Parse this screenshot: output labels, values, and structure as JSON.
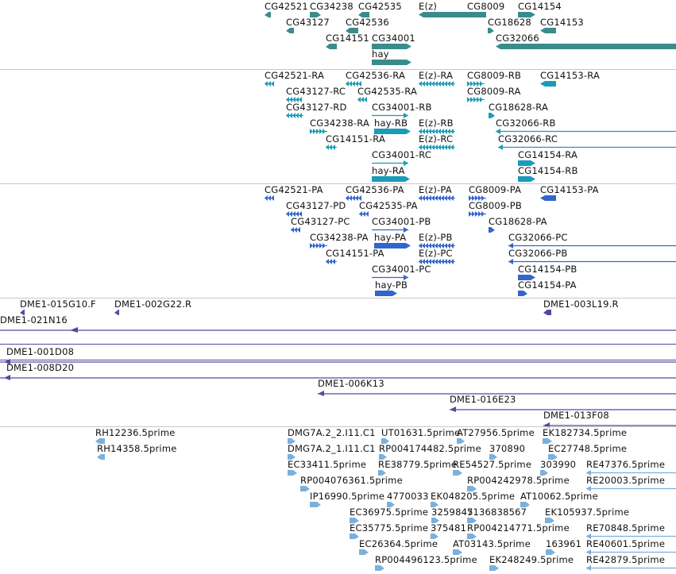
{
  "colors": {
    "gene": "#3a8c8c",
    "transcript": "#1a9cb8",
    "protein": "#3366cc",
    "clone": "#5b45a0",
    "est": "#7ab0dc",
    "separator": "#c8c8c8"
  },
  "tracks": [
    {
      "name": "genes",
      "color": "#3a8c8c",
      "features": [
        {
          "label": "CG42521",
          "strand": "-"
        },
        {
          "label": "CG34238",
          "strand": "+"
        },
        {
          "label": "CG42535",
          "strand": "-"
        },
        {
          "label": "E(z)",
          "strand": "-"
        },
        {
          "label": "CG8009",
          "strand": "+"
        },
        {
          "label": "CG14154",
          "strand": "+"
        },
        {
          "label": "CG43127",
          "strand": "-"
        },
        {
          "label": "CG42536",
          "strand": "-"
        },
        {
          "label": "CG18628",
          "strand": "+"
        },
        {
          "label": "CG14153",
          "strand": "-"
        },
        {
          "label": "CG14151",
          "strand": "-"
        },
        {
          "label": "CG34001",
          "strand": "+"
        },
        {
          "label": "CG32066",
          "strand": "-"
        },
        {
          "label": "hay",
          "strand": "+"
        }
      ]
    },
    {
      "name": "transcripts",
      "color": "#1a9cb8",
      "features": [
        {
          "label": "CG42521-RA",
          "strand": "-"
        },
        {
          "label": "CG42536-RA",
          "strand": "-"
        },
        {
          "label": "E(z)-RA",
          "strand": "-"
        },
        {
          "label": "CG8009-RB",
          "strand": "+"
        },
        {
          "label": "CG14153-RA",
          "strand": "-"
        },
        {
          "label": "CG43127-RC",
          "strand": "-"
        },
        {
          "label": "CG42535-RA",
          "strand": "-"
        },
        {
          "label": "CG8009-RA",
          "strand": "+"
        },
        {
          "label": "CG43127-RD",
          "strand": "-"
        },
        {
          "label": "CG34001-RB",
          "strand": "+"
        },
        {
          "label": "CG18628-RA",
          "strand": "+"
        },
        {
          "label": "CG34238-RA",
          "strand": "+"
        },
        {
          "label": "hay-RB",
          "strand": "+"
        },
        {
          "label": "E(z)-RB",
          "strand": "-"
        },
        {
          "label": "CG32066-RB",
          "strand": "-"
        },
        {
          "label": "CG14151-RA",
          "strand": "-"
        },
        {
          "label": "E(z)-RC",
          "strand": "-"
        },
        {
          "label": "CG32066-RC",
          "strand": "-"
        },
        {
          "label": "CG34001-RC",
          "strand": "+"
        },
        {
          "label": "CG14154-RA",
          "strand": "+"
        },
        {
          "label": "hay-RA",
          "strand": "+"
        },
        {
          "label": "CG14154-RB",
          "strand": "+"
        }
      ]
    },
    {
      "name": "proteins",
      "color": "#3366cc",
      "features": [
        {
          "label": "CG42521-PA",
          "strand": "-"
        },
        {
          "label": "CG42536-PA",
          "strand": "-"
        },
        {
          "label": "E(z)-PA",
          "strand": "-"
        },
        {
          "label": "CG8009-PA",
          "strand": "+"
        },
        {
          "label": "CG14153-PA",
          "strand": "-"
        },
        {
          "label": "CG43127-PD",
          "strand": "-"
        },
        {
          "label": "CG42535-PA",
          "strand": "-"
        },
        {
          "label": "CG8009-PB",
          "strand": "+"
        },
        {
          "label": "CG43127-PC",
          "strand": "-"
        },
        {
          "label": "CG34001-PB",
          "strand": "+"
        },
        {
          "label": "CG18628-PA",
          "strand": "+"
        },
        {
          "label": "CG34238-PA",
          "strand": "+"
        },
        {
          "label": "hay-PA",
          "strand": "+"
        },
        {
          "label": "E(z)-PB",
          "strand": "-"
        },
        {
          "label": "CG32066-PC",
          "strand": "-"
        },
        {
          "label": "CG14151-PA",
          "strand": "-"
        },
        {
          "label": "E(z)-PC",
          "strand": "-"
        },
        {
          "label": "CG32066-PB",
          "strand": "-"
        },
        {
          "label": "CG34001-PC",
          "strand": "+"
        },
        {
          "label": "CG14154-PB",
          "strand": "+"
        },
        {
          "label": "hay-PB",
          "strand": "+"
        },
        {
          "label": "CG14154-PA",
          "strand": "+"
        }
      ]
    },
    {
      "name": "clones",
      "color": "#5b45a0",
      "features": [
        {
          "label": "DME1-015G10.F",
          "strand": "-"
        },
        {
          "label": "DME1-002G22.R",
          "strand": "-"
        },
        {
          "label": "DME1-003L19.R",
          "strand": "-"
        },
        {
          "label": "DME1-021N16",
          "strand": "-"
        },
        {
          "label": "DME1-001D08",
          "strand": "-"
        },
        {
          "label": "DME1-008D20",
          "strand": "-"
        },
        {
          "label": "DME1-006K13",
          "strand": "-"
        },
        {
          "label": "DME1-016E23",
          "strand": "-"
        },
        {
          "label": "DME1-013F08",
          "strand": "-"
        }
      ]
    },
    {
      "name": "ests",
      "color": "#7ab0dc",
      "features": [
        {
          "label": "RH12236.5prime",
          "strand": "-"
        },
        {
          "label": "DMG7A.2_2.I11.C1",
          "strand": "+"
        },
        {
          "label": "UT01631.5prime",
          "strand": "+"
        },
        {
          "label": "AT27956.5prime",
          "strand": "+"
        },
        {
          "label": "EK182734.5prime",
          "strand": "+"
        },
        {
          "label": "RH14358.5prime",
          "strand": "-"
        },
        {
          "label": "DMG7A.2_1.I11.C1",
          "strand": "+"
        },
        {
          "label": "RP004174482.5prime",
          "strand": "+"
        },
        {
          "label": "370890",
          "strand": "+"
        },
        {
          "label": "EC27748.5prime",
          "strand": "+"
        },
        {
          "label": "EC33411.5prime",
          "strand": "+"
        },
        {
          "label": "RE38779.5prime",
          "strand": "+"
        },
        {
          "label": "RE54527.5prime",
          "strand": "+"
        },
        {
          "label": "303990",
          "strand": "+"
        },
        {
          "label": "RE47376.5prime",
          "strand": "-"
        },
        {
          "label": "RP004076361.5prime",
          "strand": "+"
        },
        {
          "label": "RP004242978.5prime",
          "strand": "+"
        },
        {
          "label": "RE20003.5prime",
          "strand": "-"
        },
        {
          "label": "IP16990.5prime",
          "strand": "+"
        },
        {
          "label": "4770033",
          "strand": "+"
        },
        {
          "label": "EK048205.5prime",
          "strand": "+"
        },
        {
          "label": "AT10062.5prime",
          "strand": "+"
        },
        {
          "label": "EC36975.5prime",
          "strand": "+"
        },
        {
          "label": "3259845",
          "strand": "+"
        },
        {
          "label": "7136838567",
          "strand": "+"
        },
        {
          "label": "EK105937.5prime",
          "strand": "+"
        },
        {
          "label": "EC35775.5prime",
          "strand": "+"
        },
        {
          "label": "375481",
          "strand": "+"
        },
        {
          "label": "RP004214771.5prime",
          "strand": "+"
        },
        {
          "label": "RE70848.5prime",
          "strand": "-"
        },
        {
          "label": "EC26364.5prime",
          "strand": "+"
        },
        {
          "label": "AT03143.5prime",
          "strand": "+"
        },
        {
          "label": "163961",
          "strand": "+"
        },
        {
          "label": "RE40601.5prime",
          "strand": "-"
        },
        {
          "label": "RP004496123.5prime",
          "strand": "+"
        },
        {
          "label": "EK248249.5prime",
          "strand": "+"
        },
        {
          "label": "RE42879.5prime",
          "strand": "-"
        }
      ]
    }
  ]
}
